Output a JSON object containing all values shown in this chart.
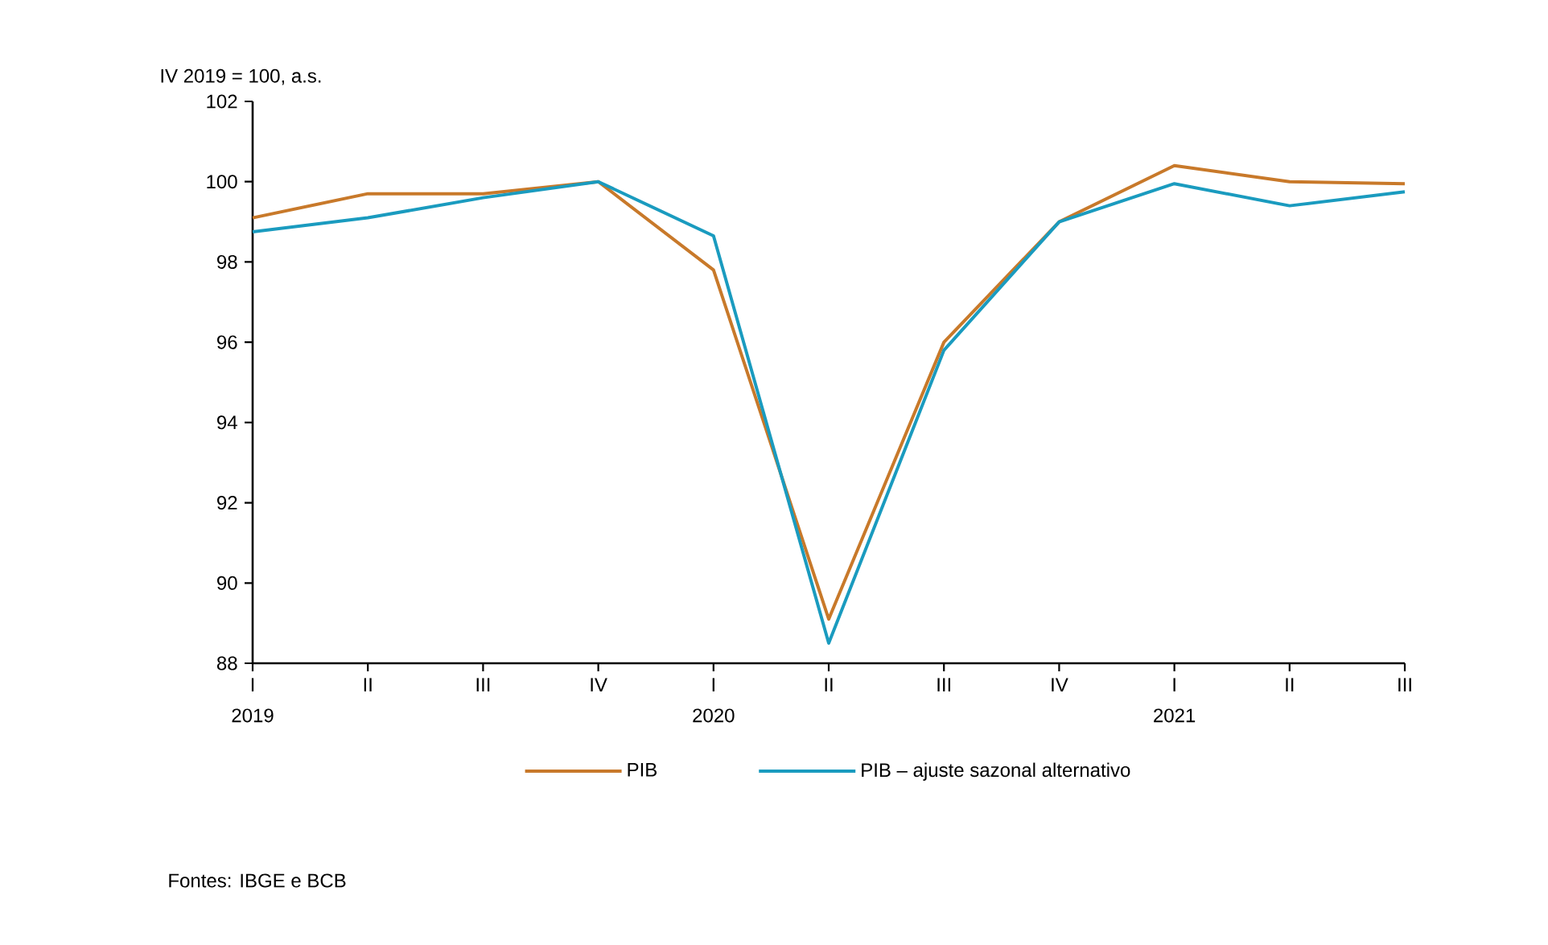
{
  "chart_data": {
    "type": "line",
    "ylabel": "IV 2019 = 100, a.s.",
    "categories": [
      "I",
      "II",
      "III",
      "IV",
      "I",
      "II",
      "III",
      "IV",
      "I",
      "II",
      "III"
    ],
    "series": [
      {
        "name": "PIB",
        "color": "#c8792a",
        "values": [
          99.1,
          99.7,
          99.7,
          100.0,
          97.8,
          89.1,
          96.0,
          99.0,
          100.4,
          100.0,
          99.95
        ]
      },
      {
        "name": "PIB – ajuste sazonal alternativo",
        "color": "#1a9bbf",
        "values": [
          98.75,
          99.1,
          99.6,
          100.0,
          98.65,
          88.5,
          95.8,
          99.0,
          99.95,
          99.4,
          99.75
        ]
      }
    ],
    "ylim": [
      88,
      102
    ],
    "yticks": [
      88,
      90,
      92,
      94,
      96,
      98,
      100,
      102
    ],
    "annotations": [
      "2019",
      "2020",
      "2021",
      "Fontes: IBGE e BCB"
    ],
    "legend": "bottom",
    "grid": false,
    "marker": "none",
    "line_style": "solid"
  }
}
